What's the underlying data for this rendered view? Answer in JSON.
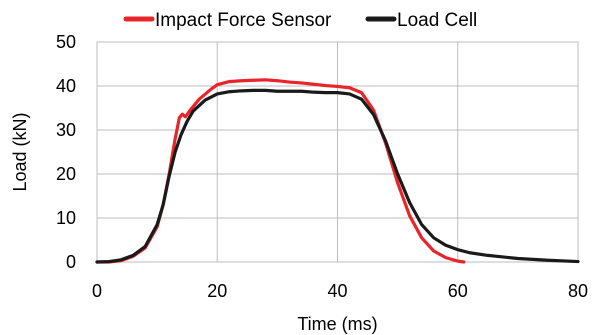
{
  "chart_data": {
    "type": "line",
    "xlabel": "Time (ms)",
    "ylabel": "Load (kN)",
    "xlim": [
      0,
      80
    ],
    "ylim": [
      0,
      50
    ],
    "xticks": [
      0,
      20,
      40,
      60,
      80
    ],
    "yticks": [
      0,
      10,
      20,
      30,
      40,
      50
    ],
    "grid": "vertical and horizontal",
    "legend_position": "top",
    "series": [
      {
        "name": "Impact Force Sensor",
        "color": "#e8252a",
        "points": [
          [
            0,
            0
          ],
          [
            2,
            0
          ],
          [
            4,
            0.3
          ],
          [
            6,
            1.3
          ],
          [
            8,
            3.2
          ],
          [
            10,
            8
          ],
          [
            11,
            13
          ],
          [
            12,
            20
          ],
          [
            13,
            28
          ],
          [
            13.7,
            32.8
          ],
          [
            14.2,
            33.6
          ],
          [
            14.7,
            33
          ],
          [
            15.5,
            34.5
          ],
          [
            17,
            37
          ],
          [
            19,
            39.3
          ],
          [
            20,
            40.3
          ],
          [
            22,
            41
          ],
          [
            24,
            41.2
          ],
          [
            26,
            41.3
          ],
          [
            28,
            41.4
          ],
          [
            30,
            41.2
          ],
          [
            32,
            40.9
          ],
          [
            34,
            40.7
          ],
          [
            36,
            40.4
          ],
          [
            38,
            40.1
          ],
          [
            40,
            39.9
          ],
          [
            42,
            39.6
          ],
          [
            44,
            38.5
          ],
          [
            46,
            34.5
          ],
          [
            48,
            27
          ],
          [
            50,
            18
          ],
          [
            52,
            10.5
          ],
          [
            54,
            5.5
          ],
          [
            56,
            2.5
          ],
          [
            58,
            1
          ],
          [
            60,
            0.2
          ],
          [
            61,
            0
          ]
        ]
      },
      {
        "name": "Load Cell",
        "color": "#1a1a1a",
        "points": [
          [
            0,
            0
          ],
          [
            2,
            0.1
          ],
          [
            4,
            0.5
          ],
          [
            6,
            1.5
          ],
          [
            8,
            3.5
          ],
          [
            10,
            8.5
          ],
          [
            11,
            13
          ],
          [
            12,
            19.5
          ],
          [
            13,
            25
          ],
          [
            14,
            29
          ],
          [
            15,
            32
          ],
          [
            16,
            34.3
          ],
          [
            18,
            36.8
          ],
          [
            20,
            38.2
          ],
          [
            22,
            38.7
          ],
          [
            24,
            38.9
          ],
          [
            26,
            39
          ],
          [
            28,
            39
          ],
          [
            30,
            38.8
          ],
          [
            32,
            38.8
          ],
          [
            34,
            38.8
          ],
          [
            36,
            38.6
          ],
          [
            38,
            38.5
          ],
          [
            40,
            38.5
          ],
          [
            42,
            38.2
          ],
          [
            44,
            37
          ],
          [
            46,
            33.5
          ],
          [
            48,
            27.5
          ],
          [
            50,
            20
          ],
          [
            52,
            13.5
          ],
          [
            54,
            8.5
          ],
          [
            56,
            5.5
          ],
          [
            58,
            3.8
          ],
          [
            60,
            2.8
          ],
          [
            62,
            2.1
          ],
          [
            65,
            1.5
          ],
          [
            70,
            0.8
          ],
          [
            75,
            0.4
          ],
          [
            80,
            0.1
          ]
        ]
      }
    ]
  }
}
